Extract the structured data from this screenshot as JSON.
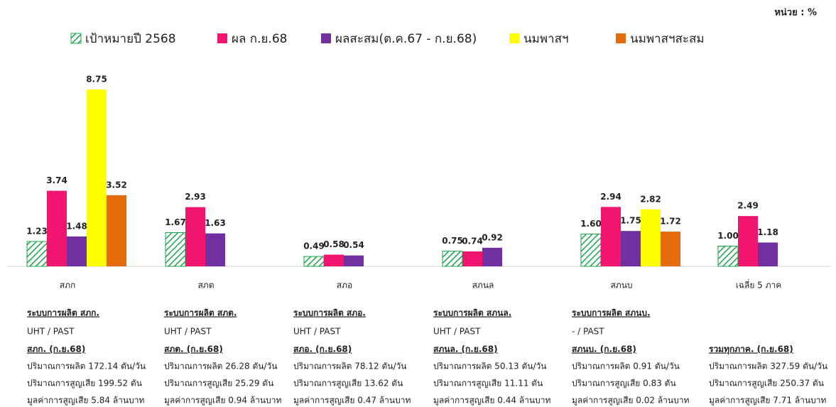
{
  "unit": "หน่วย : %",
  "chart_data": {
    "type": "bar",
    "categories": [
      "สภก",
      "สภต",
      "สภอ",
      "สภนล",
      "สภนบ",
      "เฉลี่ย 5 ภาค"
    ],
    "series": [
      {
        "name": "เป้าหมายปี 2568",
        "color": "#1aa34a",
        "hatched": true,
        "values": [
          1.23,
          1.67,
          0.49,
          0.75,
          1.6,
          1.0
        ],
        "value_labels": [
          "1.23",
          "1.67",
          "0.49",
          "0.75",
          "1.60",
          "1.00"
        ]
      },
      {
        "name": "ผล ก.ย.68",
        "color": "#f0166f",
        "values": [
          3.74,
          2.93,
          0.58,
          0.74,
          2.94,
          2.49
        ],
        "value_labels": [
          "3.74",
          "2.93",
          "0.58",
          "0.74",
          "2.94",
          "2.49"
        ]
      },
      {
        "name": "ผลสะสม(ต.ค.67 - ก.ย.68)",
        "color": "#7030a0",
        "values": [
          1.48,
          1.63,
          0.54,
          0.92,
          1.75,
          1.18
        ],
        "value_labels": [
          "1.48",
          "1.63",
          "0.54",
          "0.92",
          "1.75",
          "1.18"
        ]
      },
      {
        "name": "นมพาสฯ",
        "color": "#ffff00",
        "label_color": "#222222",
        "values": [
          8.75,
          null,
          null,
          null,
          2.82,
          null
        ],
        "value_labels": [
          "8.75",
          null,
          null,
          null,
          "2.82",
          null
        ]
      },
      {
        "name": "นมพาสฯสะสม",
        "color": "#e46c0a",
        "values": [
          3.52,
          null,
          null,
          null,
          1.72,
          null
        ],
        "value_labels": [
          "3.52",
          null,
          null,
          null,
          "1.72",
          null
        ]
      }
    ]
  },
  "notes": [
    {
      "system": "ระบบการผลิต สภก.",
      "kind": "UHT / PAST",
      "period": "สภก. (ก.ย.68)",
      "lines": [
        "ปริมาณการผลิต 172.14 ตัน/วัน",
        "ปริมาณการสูญเสีย 199.52 ตัน",
        "มูลค่าการสูญเสีย 5.84 ล้านบาท"
      ]
    },
    {
      "system": "ระบบการผลิต สภต.",
      "kind": "UHT /   PAST",
      "period": "สภต. (ก.ย.68)",
      "lines": [
        "ปริมาณการผลิต 26.28 ตัน/วัน",
        "ปริมาณการสูญเสีย 25.29 ตัน",
        "มูลค่าการสูญเสีย 0.94 ล้านบาท"
      ]
    },
    {
      "system": "ระบบการผลิต สภอ.",
      "kind": "UHT / PAST",
      "period": "สภอ. (ก.ย.68)",
      "lines": [
        "ปริมาณการผลิต 78.12 ตัน/วัน",
        "ปริมาณการสูญเสีย 13.62 ตัน",
        "มูลค่าการสูญเสีย 0.47 ล้านบาท"
      ]
    },
    {
      "system": "ระบบการผลิต สภนล.",
      "kind": "UHT / PAST",
      "period": "สภนล. (ก.ย.68)",
      "lines": [
        "ปริมาณการผลิต 50.13 ตัน/วัน",
        "ปริมาณการสูญเสีย 11.11 ตัน",
        "มูลค่าการสูญเสีย  0.44 ล้านบาท"
      ]
    },
    {
      "system": "ระบบการผลิต สภนบ.",
      "kind": " - / PAST",
      "period": "สภนบ. (ก.ย.68)",
      "lines": [
        "ปริมาณการผลิต 0.91 ตัน/วัน",
        "ปริมาณการสูญเสีย 0.83 ตัน",
        "มูลค่าการสูญเสีย  0.02  ล้านบาท"
      ]
    },
    {
      "period": "รวมทุกภาค. (ก.ย.68)",
      "lines": [
        "ปริมาณการผลิต 327.59 ตัน/วัน",
        "ปริมาณการสูญเสีย 250.37 ตัน",
        "มูลค่าการสูญเสีย 7.71  ล้านบาท"
      ]
    }
  ]
}
